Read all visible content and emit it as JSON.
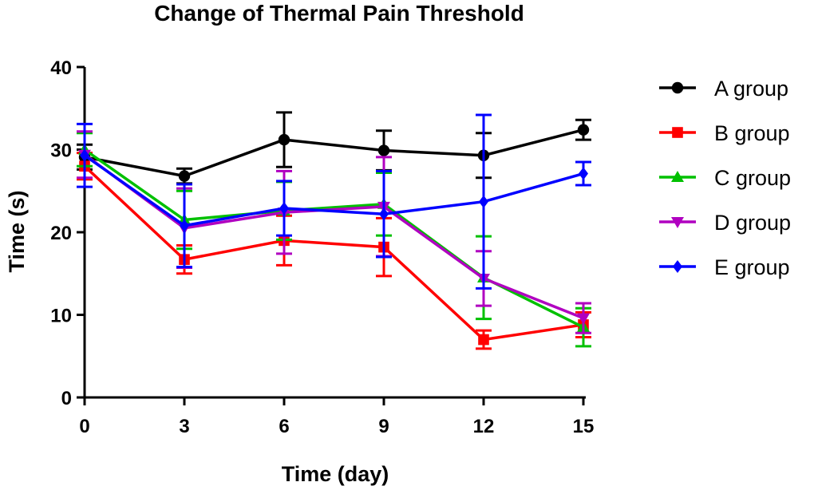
{
  "chart_data": {
    "type": "line",
    "title": "Change of Thermal Pain Threshold",
    "xlabel": "Time (day)",
    "ylabel": "Time (s)",
    "x": [
      0,
      3,
      6,
      9,
      12,
      15
    ],
    "x_tick_labels": [
      "0",
      "3",
      "6",
      "9",
      "12",
      "15"
    ],
    "xlim": [
      0,
      15
    ],
    "ylim": [
      0,
      40
    ],
    "y_ticks": [
      0,
      10,
      20,
      30,
      40
    ],
    "y_tick_labels": [
      "0",
      "10",
      "20",
      "30",
      "40"
    ],
    "grid": false,
    "legend_position": "right",
    "series": [
      {
        "name": "A group",
        "color": "#000000",
        "marker": "circle",
        "values": [
          29.1,
          26.8,
          31.2,
          29.9,
          29.3,
          32.4
        ],
        "errors": [
          1.5,
          0.9,
          3.3,
          2.4,
          2.7,
          1.2
        ]
      },
      {
        "name": "B group",
        "color": "#ff0000",
        "marker": "square",
        "values": [
          28.0,
          16.7,
          19.0,
          18.2,
          7.0,
          8.8
        ],
        "errors": [
          1.6,
          1.7,
          3.0,
          3.5,
          1.1,
          1.5
        ]
      },
      {
        "name": "C group",
        "color": "#00c000",
        "marker": "triangle-up",
        "values": [
          30.0,
          21.5,
          22.6,
          23.4,
          14.5,
          8.5
        ],
        "errors": [
          2.0,
          3.5,
          3.5,
          3.8,
          5.0,
          2.3
        ]
      },
      {
        "name": "D group",
        "color": "#b000c0",
        "marker": "triangle-down",
        "values": [
          29.4,
          20.5,
          22.4,
          23.1,
          14.4,
          9.6
        ],
        "errors": [
          2.8,
          4.8,
          5.0,
          6.0,
          3.3,
          1.8
        ]
      },
      {
        "name": "E group",
        "color": "#0000ff",
        "marker": "diamond",
        "values": [
          29.3,
          20.8,
          22.9,
          22.2,
          23.7,
          27.1
        ],
        "errors": [
          3.8,
          5.0,
          3.3,
          5.2,
          10.5,
          1.4
        ]
      }
    ]
  }
}
